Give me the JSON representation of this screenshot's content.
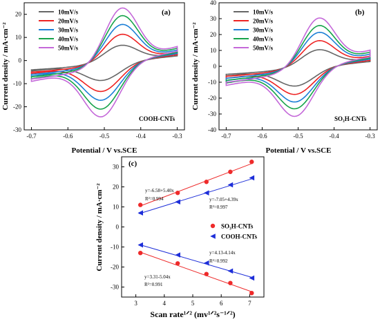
{
  "chart_data": [
    {
      "id": "a",
      "type": "line",
      "panel_label": "(a)",
      "annotation": "COOH-CNTs",
      "xlabel": "Potential / V vs.SCE",
      "ylabel": "Current density / mA·cm⁻²",
      "xlim": [
        -0.72,
        -0.28
      ],
      "ylim": [
        -30,
        25
      ],
      "xticks": [
        -0.7,
        -0.6,
        -0.5,
        -0.4,
        -0.3
      ],
      "yticks": [
        -30,
        -20,
        -10,
        0,
        10,
        20
      ],
      "xtick_labels": [
        "-0.7",
        "-0.6",
        "-0.5",
        "-0.4",
        "-0.3"
      ],
      "ytick_labels": [
        "-30",
        "-20",
        "-10",
        "0",
        "10",
        "20"
      ],
      "legend_position": "top-left",
      "cv_template": {
        "x_start": -0.7,
        "x_end": -0.3,
        "upper_start": -4.0,
        "upper_end": 3.0,
        "lower_start": -4.5,
        "lower_end": 2.0,
        "anodic_peak_x": -0.45,
        "cathodic_peak_x": -0.51
      },
      "series": [
        {
          "name": "10mV/s",
          "color": "#666666",
          "scale": 1.0,
          "peak_anodic": 7,
          "peak_cathodic": -9
        },
        {
          "name": "20mV/s",
          "color": "#ee2222",
          "scale": 1.25,
          "peak_anodic": 12,
          "peak_cathodic": -14
        },
        {
          "name": "30mV/s",
          "color": "#1b7fd6",
          "scale": 1.5,
          "peak_anodic": 16.5,
          "peak_cathodic": -18
        },
        {
          "name": "40mV/s",
          "color": "#16a34a",
          "scale": 1.75,
          "peak_anodic": 20.5,
          "peak_cathodic": -22
        },
        {
          "name": "50mV/s",
          "color": "#c468d9",
          "scale": 2.0,
          "peak_anodic": 24,
          "peak_cathodic": -25.5
        }
      ]
    },
    {
      "id": "b",
      "type": "line",
      "panel_label": "(b)",
      "annotation": "SO₃H-CNTs",
      "xlabel": "Potential / V vs.SCE",
      "ylabel": "Current density / mA·cm⁻²",
      "xlim": [
        -0.72,
        -0.28
      ],
      "ylim": [
        -40,
        40
      ],
      "xticks": [
        -0.7,
        -0.6,
        -0.5,
        -0.4,
        -0.3
      ],
      "yticks": [
        -40,
        -30,
        -20,
        -10,
        0,
        10,
        20,
        30,
        40
      ],
      "xtick_labels": [
        "-0.7",
        "-0.6",
        "-0.5",
        "-0.4",
        "-0.3"
      ],
      "ytick_labels": [
        "-40",
        "-30",
        "-20",
        "-10",
        "0",
        "10",
        "20",
        "30",
        "40"
      ],
      "legend_position": "top-left",
      "cv_template": {
        "x_start": -0.7,
        "x_end": -0.3,
        "upper_start": -5.0,
        "upper_end": 5.0,
        "lower_start": -6.0,
        "lower_end": 3.0,
        "anodic_peak_x": -0.44,
        "cathodic_peak_x": -0.51
      },
      "series": [
        {
          "name": "10mV/s",
          "color": "#666666",
          "scale": 1.0,
          "peak_anodic": 11,
          "peak_cathodic": -13
        },
        {
          "name": "20mV/s",
          "color": "#ee2222",
          "scale": 1.25,
          "peak_anodic": 17,
          "peak_cathodic": -18.5
        },
        {
          "name": "30mV/s",
          "color": "#1b7fd6",
          "scale": 1.5,
          "peak_anodic": 22.5,
          "peak_cathodic": -23.5
        },
        {
          "name": "40mV/s",
          "color": "#16a34a",
          "scale": 1.75,
          "peak_anodic": 27,
          "peak_cathodic": -28
        },
        {
          "name": "50mV/s",
          "color": "#c468d9",
          "scale": 2.0,
          "peak_anodic": 32,
          "peak_cathodic": -33
        }
      ]
    },
    {
      "id": "c",
      "type": "scatter",
      "panel_label": "(c)",
      "xlabel": "Scan rate¹ᐟ² (mv¹ᐟ²s⁻¹ᐟ²)",
      "ylabel": "Current density / mA·cm⁻²",
      "xlim": [
        2.5,
        7.5
      ],
      "ylim": [
        -35,
        35
      ],
      "xticks": [
        3,
        4,
        5,
        6,
        7
      ],
      "yticks": [
        -30,
        -20,
        -10,
        0,
        10,
        20,
        30
      ],
      "xtick_labels": [
        "3",
        "4",
        "5",
        "6",
        "7"
      ],
      "ytick_labels": [
        "-30",
        "-20",
        "-10",
        "0",
        "10",
        "20",
        "30"
      ],
      "legend_position": "right",
      "x": [
        3.16,
        4.47,
        5.48,
        6.32,
        7.07
      ],
      "series": [
        {
          "name": "SO₃H-CNTs",
          "marker": "circle",
          "color": "#ee2a2a",
          "fit": {
            "intercept": -6.58,
            "slope": 5.4
          },
          "values": [
            11,
            17,
            22.5,
            27.5,
            32.5
          ]
        },
        {
          "name": "SO₃H-CNTs",
          "marker": "circle",
          "color": "#ee2a2a",
          "fit": {
            "intercept": 3.31,
            "slope": -5.04
          },
          "values": [
            -13,
            -18.2,
            -23.5,
            -28,
            -33
          ]
        },
        {
          "name": "COOH-CNTs",
          "marker": "triangle-left",
          "color": "#1e2fd9",
          "fit": {
            "intercept": -7.05,
            "slope": 4.39
          },
          "values": [
            7,
            12.5,
            17,
            21,
            24.5
          ]
        },
        {
          "name": "COOH-CNTs",
          "marker": "triangle-left",
          "color": "#1e2fd9",
          "fit": {
            "intercept": 4.13,
            "slope": -4.14
          },
          "values": [
            -9,
            -14,
            -18,
            -22,
            -25.5
          ]
        }
      ],
      "legend": [
        {
          "name": "SO₃H-CNTs",
          "marker": "circle",
          "color": "#ee2a2a"
        },
        {
          "name": "COOH-CNTs",
          "marker": "triangle-left",
          "color": "#1e2fd9"
        }
      ],
      "annotations": [
        {
          "eq": "y=-6.58+5.40x",
          "r2": "R²=0.994"
        },
        {
          "eq": "y=-7.05+4.39x",
          "r2": "R²=0.997"
        },
        {
          "eq": "y=4.13-4.14x",
          "r2": "R²=0.992"
        },
        {
          "eq": "y=3.31-5.04x",
          "r2": "R²=0.991"
        }
      ]
    }
  ]
}
